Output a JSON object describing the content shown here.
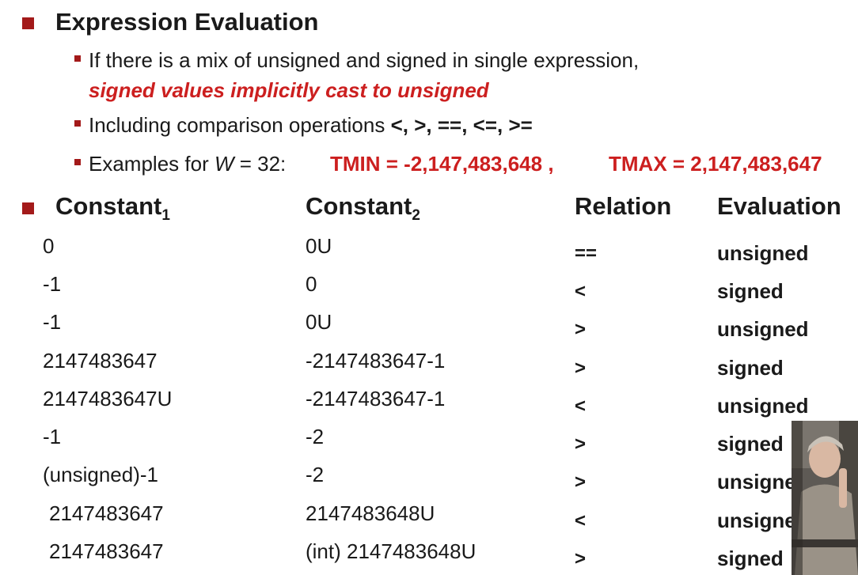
{
  "section1": {
    "heading": "Expression Evaluation",
    "bullets": {
      "mix_line": "If there is a mix of unsigned and signed in single expression,",
      "cast_line": "signed values implicitly cast to unsigned",
      "compare_prefix": "Including comparison operations ",
      "compare_ops": "<, >, ==, <=, >=",
      "examples_prefix": "Examples for ",
      "examples_var": "W",
      "examples_eq": " = 32:",
      "tmin": "TMIN = -2,147,483,648 ,",
      "tmax": "TMAX = 2,147,483,647"
    }
  },
  "table": {
    "headers": {
      "constant1": "Constant",
      "constant1_sub": "1",
      "constant2": "Constant",
      "constant2_sub": "2",
      "relation": "Relation",
      "evaluation": "Evaluation"
    },
    "rows": [
      {
        "c1": "0",
        "c2": "0U",
        "rel": "==",
        "eval": "unsigned"
      },
      {
        "c1": "-1",
        "c2": "0",
        "rel": "<",
        "eval": "signed"
      },
      {
        "c1": "-1",
        "c2": "0U",
        "rel": ">",
        "eval": "unsigned"
      },
      {
        "c1": "2147483647",
        "c2": "-2147483647-1",
        "rel": ">",
        "eval": "signed"
      },
      {
        "c1": "2147483647U",
        "c2": "-2147483647-1",
        "rel": "<",
        "eval": "unsigned"
      },
      {
        "c1": "-1",
        "c2": "-2",
        "rel": ">",
        "eval": "signed"
      },
      {
        "c1": "(unsigned)-1",
        "c2": "-2",
        "rel": ">",
        "eval": "unsigned"
      },
      {
        "c1": "2147483647",
        "c2": "2147483648U",
        "rel": "<",
        "eval": "unsigned"
      },
      {
        "c1": "2147483647",
        "c2": "(int) 2147483648U",
        "rel": ">",
        "eval": "signed"
      }
    ]
  },
  "colors": {
    "accent_red": "#cc1f1f",
    "bullet_red": "#a31a1a",
    "text": "#1a1a1a"
  }
}
